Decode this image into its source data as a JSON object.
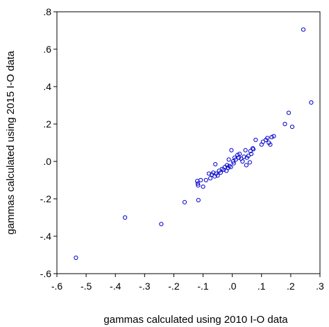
{
  "chart_data": {
    "type": "scatter",
    "title": "",
    "xlabel": "gammas calculated using 2010 I-O data",
    "ylabel": "gammas calculated using 2015 I-O data",
    "xlim": [
      -0.6,
      0.3
    ],
    "ylim": [
      -0.6,
      0.8
    ],
    "grid": false,
    "marker_color": "#0000cc",
    "marker": "open-circle",
    "x_ticks": [
      {
        "value": -0.6,
        "label": "-.6"
      },
      {
        "value": -0.5,
        "label": "-.5"
      },
      {
        "value": -0.4,
        "label": "-.4"
      },
      {
        "value": -0.3,
        "label": "-.3"
      },
      {
        "value": -0.2,
        "label": "-.2"
      },
      {
        "value": -0.1,
        "label": "-.1"
      },
      {
        "value": 0.0,
        "label": ".0"
      },
      {
        "value": 0.1,
        "label": ".1"
      },
      {
        "value": 0.2,
        "label": ".2"
      },
      {
        "value": 0.3,
        "label": ".3"
      }
    ],
    "y_ticks": [
      {
        "value": -0.6,
        "label": "-.6"
      },
      {
        "value": -0.4,
        "label": "-.4"
      },
      {
        "value": -0.2,
        "label": "-.2"
      },
      {
        "value": 0.0,
        "label": ".0"
      },
      {
        "value": 0.2,
        "label": ".2"
      },
      {
        "value": 0.4,
        "label": ".4"
      },
      {
        "value": 0.6,
        "label": ".6"
      },
      {
        "value": 0.8,
        "label": ".8"
      }
    ],
    "points": [
      [
        -0.535,
        -0.515
      ],
      [
        -0.367,
        -0.3
      ],
      [
        -0.243,
        -0.335
      ],
      [
        -0.163,
        -0.218
      ],
      [
        -0.116,
        -0.207
      ],
      [
        -0.12,
        -0.105
      ],
      [
        -0.118,
        -0.118
      ],
      [
        -0.117,
        -0.128
      ],
      [
        -0.108,
        -0.1
      ],
      [
        -0.1,
        -0.135
      ],
      [
        -0.09,
        -0.1
      ],
      [
        -0.08,
        -0.065
      ],
      [
        -0.075,
        -0.09
      ],
      [
        -0.07,
        -0.07
      ],
      [
        -0.065,
        -0.06
      ],
      [
        -0.06,
        -0.08
      ],
      [
        -0.058,
        -0.015
      ],
      [
        -0.055,
        -0.065
      ],
      [
        -0.05,
        -0.075
      ],
      [
        -0.045,
        -0.05
      ],
      [
        -0.04,
        -0.06
      ],
      [
        -0.035,
        -0.04
      ],
      [
        -0.03,
        -0.045
      ],
      [
        -0.025,
        -0.03
      ],
      [
        -0.02,
        -0.05
      ],
      [
        -0.018,
        -0.02
      ],
      [
        -0.015,
        -0.035
      ],
      [
        -0.012,
        0.01
      ],
      [
        -0.01,
        -0.025
      ],
      [
        -0.005,
        -0.03
      ],
      [
        -0.003,
        0.06
      ],
      [
        0.003,
        0.0
      ],
      [
        0.005,
        -0.01
      ],
      [
        0.008,
        0.02
      ],
      [
        0.012,
        0.01
      ],
      [
        0.018,
        0.035
      ],
      [
        0.022,
        0.02
      ],
      [
        0.025,
        0.04
      ],
      [
        0.03,
        0.015
      ],
      [
        0.035,
        0.0
      ],
      [
        0.04,
        0.025
      ],
      [
        0.045,
        0.06
      ],
      [
        0.048,
        -0.02
      ],
      [
        0.05,
        0.02
      ],
      [
        0.055,
        0.03
      ],
      [
        0.06,
        -0.005
      ],
      [
        0.062,
        0.055
      ],
      [
        0.065,
        0.04
      ],
      [
        0.07,
        0.07
      ],
      [
        0.072,
        0.065
      ],
      [
        0.08,
        0.115
      ],
      [
        0.1,
        0.09
      ],
      [
        0.105,
        0.105
      ],
      [
        0.115,
        0.115
      ],
      [
        0.12,
        0.125
      ],
      [
        0.125,
        0.1
      ],
      [
        0.13,
        0.09
      ],
      [
        0.135,
        0.13
      ],
      [
        0.142,
        0.135
      ],
      [
        0.18,
        0.2
      ],
      [
        0.193,
        0.26
      ],
      [
        0.205,
        0.185
      ],
      [
        0.243,
        0.705
      ],
      [
        0.27,
        0.315
      ]
    ]
  }
}
